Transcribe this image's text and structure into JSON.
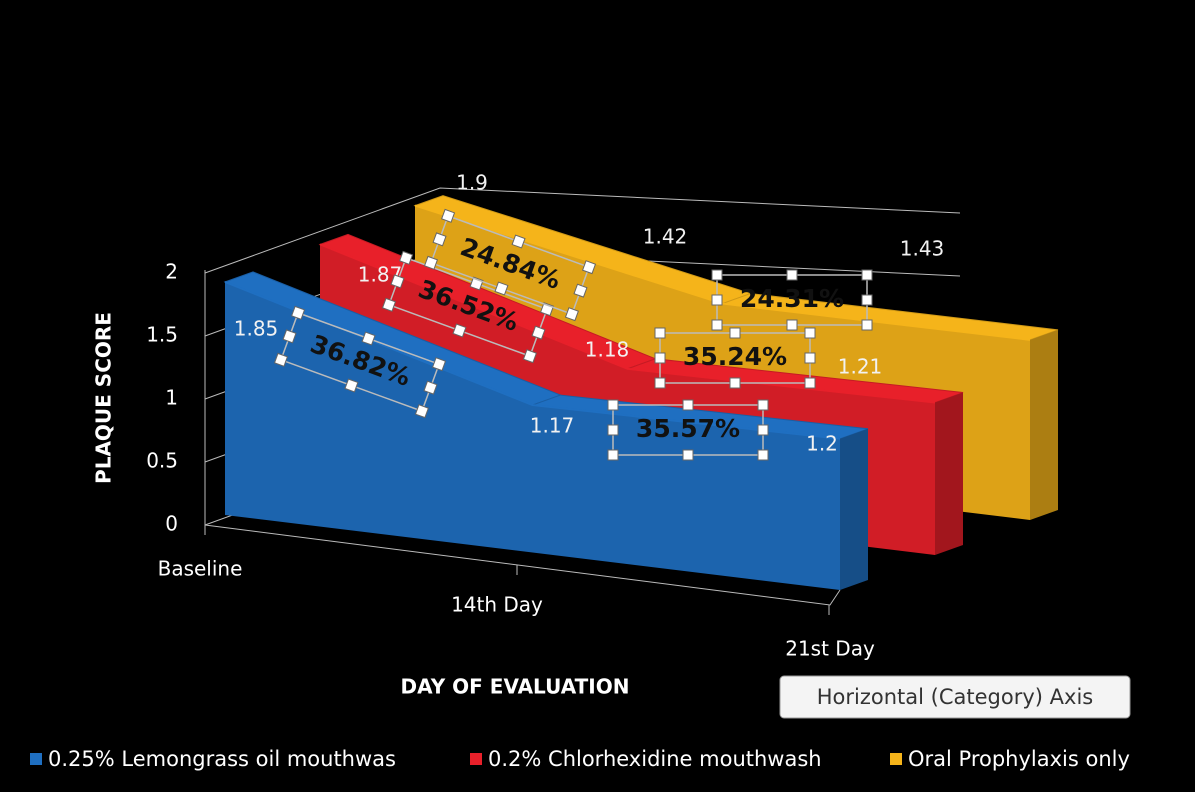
{
  "chart_data": {
    "type": "area3d",
    "y_label": "PLAQUE SCORE",
    "x_label": "DAY OF EVALUATION",
    "categories": [
      "Baseline",
      "14th Day",
      "21st Day"
    ],
    "series": [
      {
        "name": "0.25% Lemongrass oil mouthwas",
        "color": "#1f6fc1",
        "values": [
          1.85,
          1.17,
          1.2
        ]
      },
      {
        "name": "0.2% Chlorhexidine mouthwash",
        "color": "#e8202a",
        "values": [
          1.87,
          1.18,
          1.21
        ]
      },
      {
        "name": "Oral Prophylaxis only",
        "color": "#f5b41a",
        "values": [
          1.9,
          1.42,
          1.43
        ]
      }
    ],
    "ylim": [
      0,
      2
    ],
    "yticks": [
      0,
      0.5,
      1,
      1.5,
      2
    ],
    "grid": true,
    "legend": "bottom",
    "annotations": [
      "36.82%",
      "36.52%",
      "24.84%",
      "35.57%",
      "35.24%",
      "24.31%"
    ],
    "tooltip": "Horizontal (Category) Axis"
  }
}
